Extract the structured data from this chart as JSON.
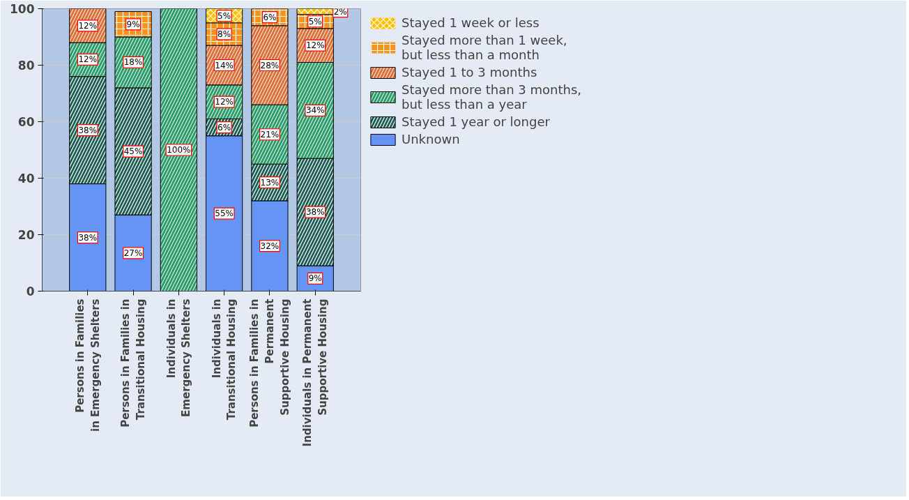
{
  "chart_data": {
    "type": "bar",
    "stacked": true,
    "categories": [
      "Persons in Families\nin Emergency Shelters",
      "Persons in Families in\nTransitional Housing",
      "Individuals in\nEmergency Shelters",
      "Individuals in\nTransitional Housing",
      "Persons in Families in\nPermanent\nSupportive Housing",
      "Individuals in Permanent\nSupportive Housing"
    ],
    "series": [
      {
        "name": "Unknown",
        "color": "#6495f5",
        "values": [
          38,
          27,
          0,
          55,
          32,
          9
        ],
        "value_labels": [
          "38%",
          "27%",
          null,
          "55%",
          "32%",
          "9%"
        ]
      },
      {
        "name": "Stayed 1 year or longer",
        "color": "#1b5e52",
        "values": [
          38,
          45,
          0,
          6,
          13,
          38
        ],
        "value_labels": [
          "38%",
          "45%",
          null,
          "6%",
          "13%",
          "38%"
        ]
      },
      {
        "name": "Stayed more than 3 months,\nbut less than a year",
        "color": "#2e9e6a",
        "values": [
          12,
          18,
          100,
          12,
          21,
          34
        ],
        "value_labels": [
          "12%",
          "18%",
          "100%",
          "12%",
          "21%",
          "34%"
        ]
      },
      {
        "name": "Stayed 1 to 3 months",
        "color": "#e0703a",
        "values": [
          12,
          0,
          0,
          14,
          28,
          12
        ],
        "value_labels": [
          "12%",
          null,
          null,
          "14%",
          "28%",
          "12%"
        ]
      },
      {
        "name": "Stayed more than 1 week,\nbut less than a month",
        "color": "#f7941d",
        "values": [
          0,
          9,
          0,
          8,
          6,
          5
        ],
        "value_labels": [
          null,
          "9%",
          null,
          "8%",
          "6%",
          "5%"
        ]
      },
      {
        "name": "Stayed 1 week or less",
        "color": "#ffc000",
        "values": [
          0,
          0,
          0,
          5,
          0,
          2
        ],
        "value_labels": [
          null,
          null,
          null,
          "5%",
          null,
          "2%"
        ]
      }
    ],
    "ylim": [
      0,
      100
    ],
    "yticks": [
      0,
      20,
      40,
      60,
      80,
      100
    ],
    "grid": "y",
    "legend": "top right"
  }
}
